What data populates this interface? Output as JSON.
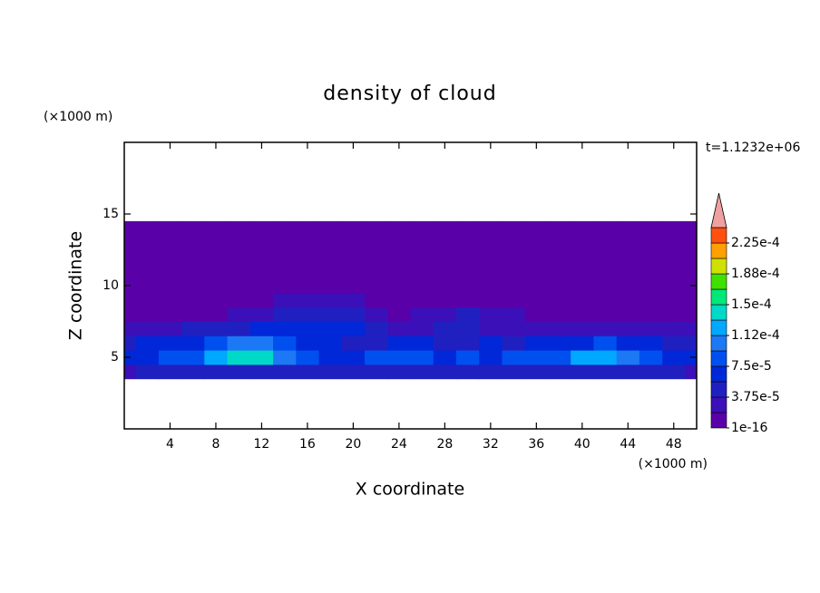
{
  "chart_data": {
    "type": "contour",
    "title": "density of cloud",
    "x_label": "X coordinate",
    "y_label": "Z coordinate",
    "x_unit": "(×1000 m)",
    "y_unit": "(×1000 m)",
    "time_label": "t=1.1232e+06",
    "xlim": [
      0,
      50
    ],
    "ylim": [
      0,
      20
    ],
    "xticks": [
      4,
      8,
      12,
      16,
      20,
      24,
      28,
      32,
      36,
      40,
      44,
      48
    ],
    "yticks": [
      5,
      10,
      15
    ],
    "x": [
      0,
      2,
      4,
      6,
      8,
      10,
      12,
      14,
      16,
      18,
      20,
      22,
      24,
      26,
      28,
      30,
      32,
      34,
      36,
      38,
      40,
      42,
      44,
      46,
      48,
      50
    ],
    "y": [
      4,
      5,
      6,
      7,
      8,
      9,
      10,
      11,
      12,
      13,
      14
    ],
    "z": [
      [
        3e-05,
        5e-05,
        5e-05,
        5e-05,
        5e-05,
        5e-05,
        5e-05,
        5e-05,
        5e-05,
        5e-05,
        5e-05,
        5e-05,
        5e-05,
        5e-05,
        5e-05,
        5e-05,
        5e-05,
        5e-05,
        5e-05,
        5e-05,
        5e-05,
        5e-05,
        5e-05,
        5e-05,
        5e-05,
        3e-05
      ],
      [
        6e-05,
        7e-05,
        8e-05,
        9e-05,
        0.00013,
        0.00014,
        0.000135,
        0.00011,
        8e-05,
        7e-05,
        7e-05,
        8e-05,
        9e-05,
        8e-05,
        7e-05,
        8e-05,
        7e-05,
        8e-05,
        9e-05,
        9e-05,
        0.00012,
        0.000125,
        0.0001,
        8e-05,
        7e-05,
        6e-05
      ],
      [
        5e-05,
        6e-05,
        6e-05,
        7e-05,
        8e-05,
        0.0001,
        0.0001,
        9e-05,
        7e-05,
        6e-05,
        5e-05,
        5e-05,
        6e-05,
        6e-05,
        5e-05,
        5e-05,
        6e-05,
        5e-05,
        6e-05,
        7e-05,
        7e-05,
        8e-05,
        7e-05,
        6e-05,
        5e-05,
        5e-05
      ],
      [
        2e-05,
        3e-05,
        3e-05,
        4e-05,
        4e-05,
        5e-05,
        6e-05,
        6e-05,
        6e-05,
        6e-05,
        6e-05,
        4e-05,
        3e-05,
        3e-05,
        4e-05,
        4e-05,
        3e-05,
        3e-05,
        3e-05,
        3e-05,
        3e-05,
        3e-05,
        3e-05,
        3e-05,
        3e-05,
        2e-05
      ],
      [
        1e-16,
        1e-05,
        1e-05,
        1e-05,
        1e-05,
        2e-05,
        3e-05,
        4e-05,
        5e-05,
        5e-05,
        5e-05,
        2e-05,
        1e-05,
        2e-05,
        3e-05,
        4e-05,
        3e-05,
        2e-05,
        1e-05,
        1e-05,
        1e-05,
        1e-05,
        1e-16,
        1e-16,
        1e-16,
        1e-16
      ],
      [
        1e-16,
        1e-16,
        1e-16,
        1e-16,
        1e-05,
        1e-05,
        1e-05,
        2e-05,
        2e-05,
        2e-05,
        2e-05,
        1e-05,
        1e-05,
        1e-05,
        1e-05,
        1e-05,
        1e-05,
        1e-05,
        1e-05,
        1e-05,
        1e-05,
        1e-05,
        1e-05,
        1e-16,
        1e-16,
        1e-16
      ],
      [
        1e-16,
        1e-16,
        1e-16,
        1e-16,
        1e-16,
        1e-05,
        1e-05,
        1e-05,
        1e-05,
        1e-05,
        1e-05,
        1e-05,
        1e-05,
        1e-05,
        1e-05,
        1e-05,
        1e-05,
        1e-05,
        1e-05,
        1e-05,
        1e-16,
        1e-16,
        1e-16,
        1e-16,
        1e-16,
        1e-16
      ],
      [
        1e-16,
        1e-16,
        1e-16,
        1e-16,
        1e-16,
        1e-16,
        1e-16,
        1e-16,
        1e-16,
        1e-16,
        1e-16,
        1e-16,
        1e-16,
        1e-16,
        1e-16,
        1e-16,
        1e-16,
        1e-16,
        1e-16,
        1e-16,
        1e-16,
        1e-16,
        1e-16,
        1e-16,
        1e-16,
        1e-16
      ],
      [
        1e-16,
        1e-16,
        1e-16,
        1e-16,
        1e-16,
        1e-16,
        1e-16,
        1e-16,
        1e-16,
        1e-16,
        1e-16,
        1e-16,
        1e-16,
        1e-16,
        1e-16,
        1e-16,
        1e-16,
        1e-16,
        1e-16,
        1e-16,
        1e-16,
        1e-16,
        1e-16,
        1e-16,
        1e-16,
        1e-16
      ],
      [
        1e-16,
        1e-16,
        1e-16,
        1e-16,
        1e-16,
        1e-16,
        1e-16,
        1e-16,
        1e-16,
        1e-16,
        1e-16,
        1e-16,
        1e-16,
        1e-16,
        1e-16,
        1e-16,
        1e-16,
        1e-16,
        1e-16,
        1e-16,
        1e-16,
        1e-16,
        1e-16,
        1e-16,
        1e-16,
        1e-16
      ],
      [
        1e-16,
        1e-16,
        1e-16,
        1e-16,
        1e-16,
        1e-16,
        1e-16,
        1e-16,
        1e-16,
        1e-16,
        1e-16,
        1e-16,
        1e-16,
        1e-16,
        1e-16,
        1e-16,
        1e-16,
        1e-16,
        1e-16,
        1e-16,
        1e-16,
        1e-16,
        1e-16,
        1e-16,
        1e-16,
        1e-16
      ]
    ],
    "levels": [
      1e-16,
      1.875e-05,
      3.75e-05,
      5.625e-05,
      7.5e-05,
      9.375e-05,
      0.0001125,
      0.00013125,
      0.00015,
      0.00016875,
      0.0001875,
      0.00020625,
      0.000225,
      0.00024375
    ],
    "colors": [
      "#5a00a8",
      "#3c10b8",
      "#2020c0",
      "#0028d8",
      "#0050f0",
      "#1c78f4",
      "#00a8ff",
      "#00d8c8",
      "#00e878",
      "#40e000",
      "#d0e000",
      "#ffa000",
      "#ff5010"
    ],
    "extend_color": "#f0a0a0",
    "colorbar_ticks": [
      1e-16,
      {
        "value": 3.75e-05,
        "label": "3.75e-5"
      },
      {
        "value": 7.5e-05,
        "label": "7.5e-5"
      },
      {
        "value": 0.0001125,
        "label": "1.12e-4"
      },
      {
        "value": 0.00015,
        "label": "1.5e-4"
      },
      {
        "value": 0.0001875,
        "label": "1.88e-4"
      },
      {
        "value": 0.000225,
        "label": "2.25e-4"
      }
    ]
  }
}
